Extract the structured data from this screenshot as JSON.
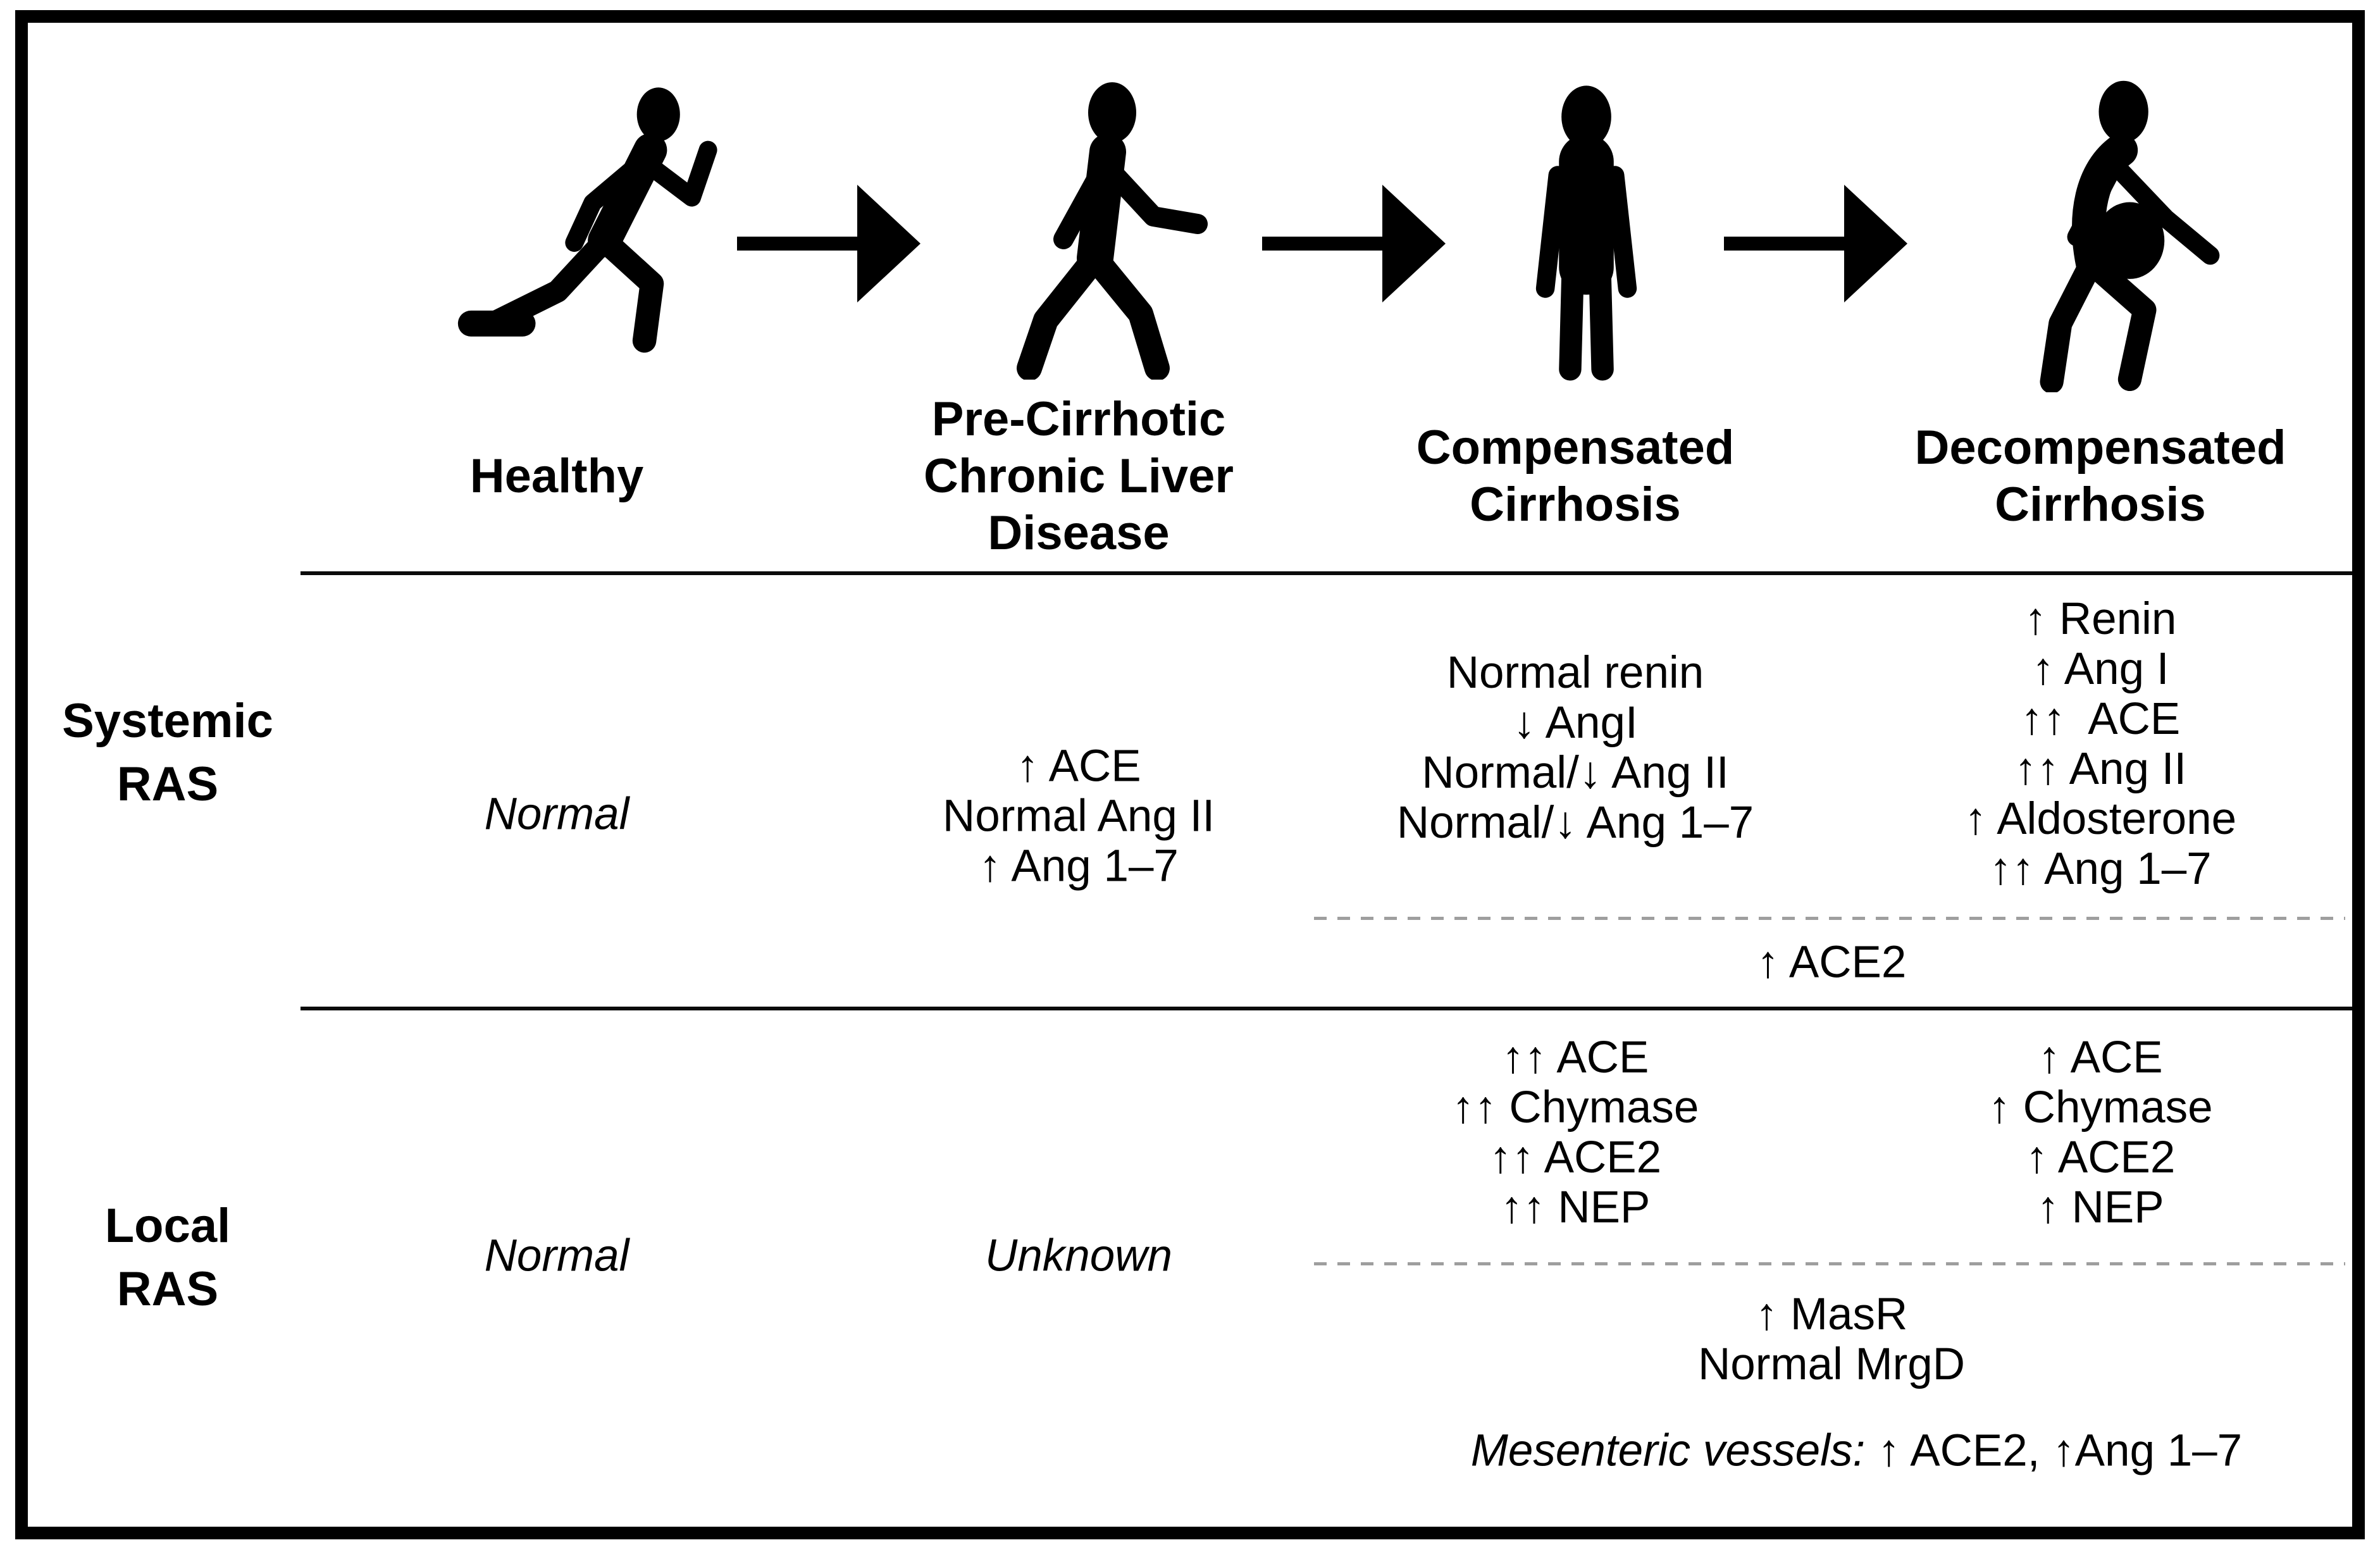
{
  "colors": {
    "ink": "#000000",
    "dashed_line": "#9e9e9e",
    "background": "#ffffff"
  },
  "stages": [
    {
      "name": "healthy",
      "label_lines": [
        "Healthy"
      ],
      "icon": "running-person-icon"
    },
    {
      "name": "pre_cirrhotic",
      "label_lines": [
        "Pre-Cirrhotic",
        "Chronic Liver",
        "Disease"
      ],
      "icon": "walking-person-icon"
    },
    {
      "name": "compensated",
      "label_lines": [
        "Compensated",
        "Cirrhosis"
      ],
      "icon": "standing-person-icon"
    },
    {
      "name": "decompensated",
      "label_lines": [
        "Decompensated",
        "Cirrhosis"
      ],
      "icon": "ascites-person-icon"
    }
  ],
  "arrows": [
    {
      "icon": "progression-arrow-icon"
    },
    {
      "icon": "progression-arrow-icon"
    },
    {
      "icon": "progression-arrow-icon"
    }
  ],
  "systemic": {
    "label_lines": [
      "Systemic",
      "RAS"
    ],
    "healthy_lines": [
      "Normal"
    ],
    "pre_cirrhotic_lines": [
      "↑ ACE",
      "Normal Ang II",
      "↑ Ang 1–7"
    ],
    "compensated_lines": [
      "Normal renin",
      "↓ AngI",
      "Normal/↓ Ang II",
      "Normal/↓ Ang 1–7"
    ],
    "decompensated_lines": [
      "↑ Renin",
      "↑ Ang I",
      "↑↑  ACE",
      "↑↑ Ang II",
      "↑ Aldosterone",
      "↑↑ Ang 1–7"
    ],
    "shared_lines": [
      "↑ ACE2"
    ]
  },
  "local": {
    "label_lines": [
      "Local",
      "RAS"
    ],
    "healthy_lines": [
      "Normal"
    ],
    "pre_cirrhotic_lines": [
      "Unknown"
    ],
    "compensated_lines": [
      "↑↑ ACE",
      "↑↑ Chymase",
      "↑↑ ACE2",
      "↑↑ NEP"
    ],
    "decompensated_lines": [
      "↑ ACE",
      "↑ Chymase",
      "↑ ACE2",
      "↑ NEP"
    ],
    "shared_lines": [
      "↑ MasR",
      "Normal MrgD"
    ],
    "footnote_italic": "Mesenteric vessels: ",
    "footnote_rest": "↑ ACE2, ↑Ang 1–7"
  }
}
